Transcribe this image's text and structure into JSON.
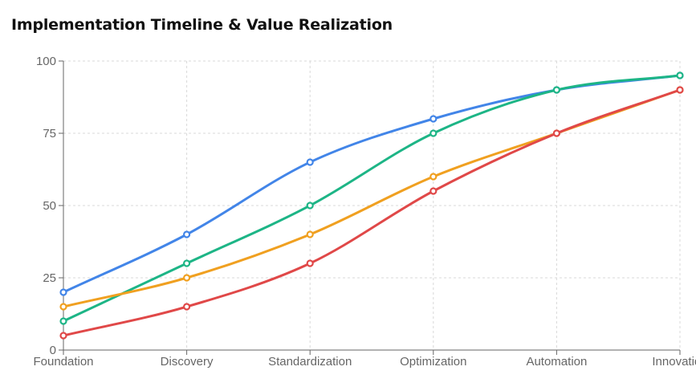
{
  "title": "Implementation Timeline & Value Realization",
  "chart_data": {
    "type": "line",
    "title": "Implementation Timeline & Value Realization",
    "categories": [
      "Foundation",
      "Discovery",
      "Standardization",
      "Optimization",
      "Automation",
      "Innovation"
    ],
    "ylim": [
      0,
      100
    ],
    "yticks": [
      0,
      25,
      50,
      75,
      100
    ],
    "grid": true,
    "curve": "smooth",
    "series": [
      {
        "color": "#4285e8",
        "values": [
          20,
          40,
          65,
          80,
          90,
          95
        ]
      },
      {
        "color": "#1db586",
        "values": [
          10,
          30,
          50,
          75,
          90,
          95
        ]
      },
      {
        "color": "#f0a020",
        "values": [
          15,
          25,
          40,
          60,
          75,
          90
        ]
      },
      {
        "color": "#e04848",
        "values": [
          5,
          15,
          30,
          55,
          75,
          90
        ]
      }
    ]
  }
}
